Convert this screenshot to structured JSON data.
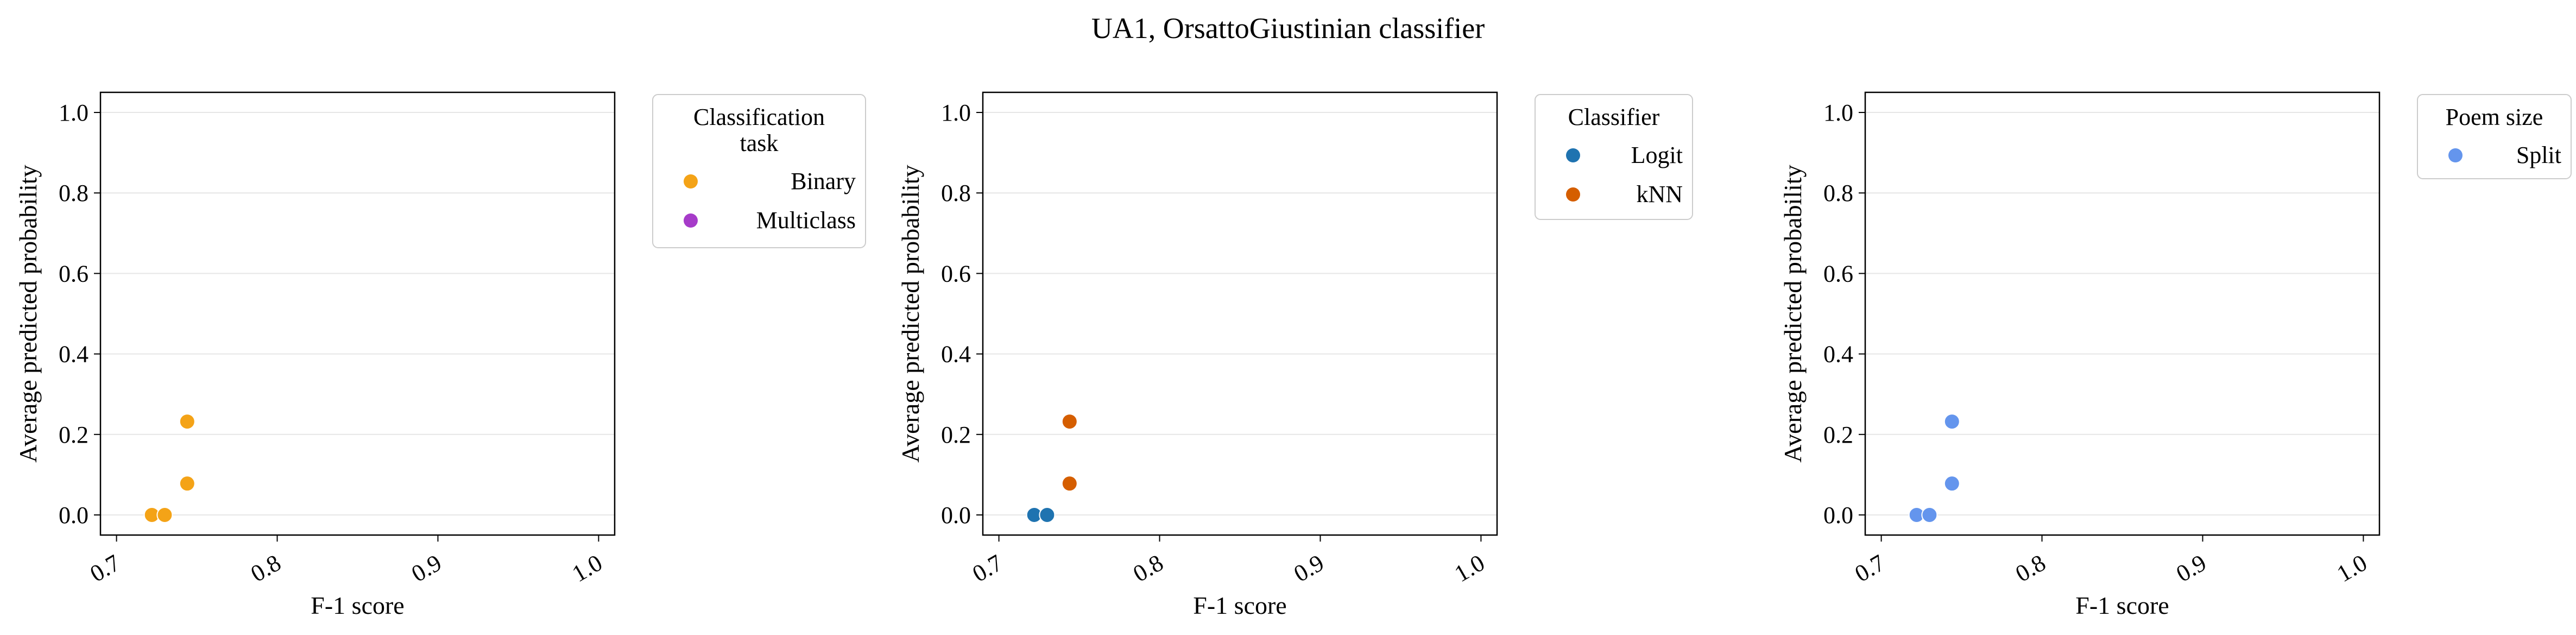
{
  "figure": {
    "title": "UA1, OrsattoGiustinian classifier"
  },
  "chart_data": [
    {
      "type": "scatter",
      "xlabel": "F-1 score",
      "ylabel": "Average predicted probability",
      "xlim": [
        0.69,
        1.01
      ],
      "ylim": [
        -0.05,
        1.05
      ],
      "xticks": [
        "0.7",
        "0.8",
        "0.9",
        "1.0"
      ],
      "yticks": [
        "0.0",
        "0.2",
        "0.4",
        "0.6",
        "0.8",
        "1.0"
      ],
      "grid": "horizontal",
      "legend": {
        "title_lines": [
          "Classification",
          "task"
        ],
        "placement": "outside-upper-right",
        "entries": [
          {
            "label": "Binary",
            "color": "#F4A317"
          },
          {
            "label": "Multiclass",
            "color": "#A63BC9"
          }
        ]
      },
      "series": [
        {
          "name": "Binary",
          "color": "#F4A317",
          "points": [
            [
              0.722,
              0.0
            ],
            [
              0.73,
              0.0
            ],
            [
              0.744,
              0.078
            ],
            [
              0.744,
              0.232
            ]
          ]
        },
        {
          "name": "Multiclass",
          "color": "#A63BC9",
          "points": []
        }
      ]
    },
    {
      "type": "scatter",
      "xlabel": "F-1 score",
      "ylabel": "Average predicted probability",
      "xlim": [
        0.69,
        1.01
      ],
      "ylim": [
        -0.05,
        1.05
      ],
      "xticks": [
        "0.7",
        "0.8",
        "0.9",
        "1.0"
      ],
      "yticks": [
        "0.0",
        "0.2",
        "0.4",
        "0.6",
        "0.8",
        "1.0"
      ],
      "grid": "horizontal",
      "legend": {
        "title_lines": [
          "Classifier"
        ],
        "placement": "outside-upper-right",
        "entries": [
          {
            "label": "Logit",
            "color": "#1F73B0"
          },
          {
            "label": "kNN",
            "color": "#D55E00"
          }
        ]
      },
      "series": [
        {
          "name": "Logit",
          "color": "#1F73B0",
          "points": [
            [
              0.722,
              0.0
            ],
            [
              0.73,
              0.0
            ]
          ]
        },
        {
          "name": "kNN",
          "color": "#D55E00",
          "points": [
            [
              0.744,
              0.078
            ],
            [
              0.744,
              0.232
            ]
          ]
        }
      ]
    },
    {
      "type": "scatter",
      "xlabel": "F-1 score",
      "ylabel": "Average predicted probability",
      "xlim": [
        0.69,
        1.01
      ],
      "ylim": [
        -0.05,
        1.05
      ],
      "xticks": [
        "0.7",
        "0.8",
        "0.9",
        "1.0"
      ],
      "yticks": [
        "0.0",
        "0.2",
        "0.4",
        "0.6",
        "0.8",
        "1.0"
      ],
      "grid": "horizontal",
      "legend": {
        "title_lines": [
          "Poem size"
        ],
        "placement": "outside-upper-right",
        "entries": [
          {
            "label": "Split",
            "color": "#6495ED"
          }
        ]
      },
      "series": [
        {
          "name": "Split",
          "color": "#6495ED",
          "points": [
            [
              0.722,
              0.0
            ],
            [
              0.73,
              0.0
            ],
            [
              0.744,
              0.078
            ],
            [
              0.744,
              0.232
            ]
          ]
        }
      ]
    }
  ]
}
